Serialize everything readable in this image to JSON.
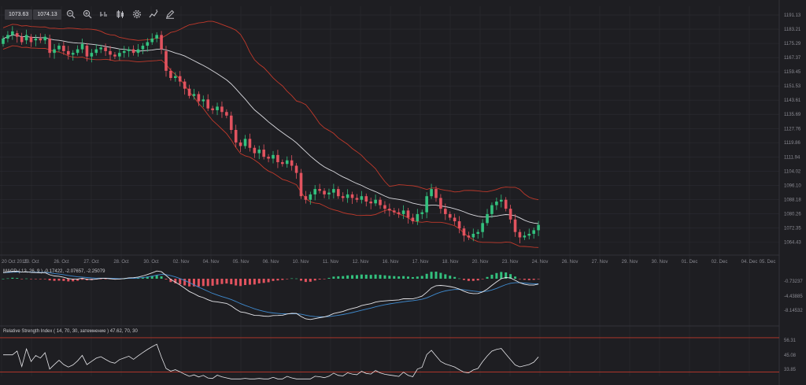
{
  "toolbar": {
    "bid": "1073.63",
    "ask": "1074.13",
    "buttons": [
      "zoom-out-icon",
      "zoom-in-icon",
      "chart-type-icon",
      "candles-icon",
      "settings-icon",
      "indicators-icon",
      "draw-icon"
    ]
  },
  "colors": {
    "bull": "#33c17e",
    "bear": "#e2535f",
    "band": "#c0392b",
    "sma": "#d9d9de",
    "macd_line": "#e6e6ea",
    "signal": "#3f8bd0",
    "rsi": "#e6e6ea",
    "grid": "#2c2c32"
  },
  "chart_data": [
    {
      "type": "candlestick",
      "title": "",
      "ylim": [
        1058,
        1196
      ],
      "y_ticks": [
        "1191.13",
        "1183.21",
        "1175.29",
        "1167.37",
        "1159.45",
        "1151.53",
        "1143.61",
        "1135.69",
        "1127.76",
        "1119.86",
        "1111.94",
        "1104.02",
        "1096.10",
        "1088.18",
        "1080.26",
        "1072.35",
        "1064.43"
      ],
      "x_ticks": [
        "20 Oct 2015",
        "23. Oct",
        "26. Oct",
        "27. Oct",
        "28. Oct",
        "30. Oct",
        "02. Nov",
        "04. Nov",
        "05. Nov",
        "06. Nov",
        "10. Nov",
        "11. Nov",
        "12. Nov",
        "16. Nov",
        "17. Nov",
        "18. Nov",
        "20. Nov",
        "23. Nov",
        "24. Nov",
        "26. Nov",
        "27. Nov",
        "29. Nov",
        "30. Nov",
        "01. Dec",
        "02. Dec",
        "04. Dec",
        "05. Dec"
      ],
      "close": [
        1178,
        1180,
        1182,
        1179,
        1176,
        1180,
        1176,
        1178,
        1177,
        1179,
        1170,
        1172,
        1174,
        1171,
        1169,
        1170,
        1172,
        1175,
        1168,
        1170,
        1172,
        1173,
        1171,
        1169,
        1168,
        1170,
        1171,
        1172,
        1170,
        1172,
        1174,
        1176,
        1178,
        1180,
        1172,
        1160,
        1156,
        1157,
        1154,
        1150,
        1146,
        1147,
        1143,
        1144,
        1139,
        1138,
        1140,
        1137,
        1135,
        1127,
        1120,
        1118,
        1122,
        1117,
        1114,
        1116,
        1112,
        1111,
        1113,
        1109,
        1108,
        1110,
        1107,
        1103,
        1090,
        1088,
        1091,
        1094,
        1093,
        1091,
        1092,
        1094,
        1090,
        1089,
        1091,
        1089,
        1088,
        1090,
        1087,
        1086,
        1088,
        1085,
        1083,
        1082,
        1081,
        1080,
        1082,
        1078,
        1076,
        1080,
        1081,
        1090,
        1094,
        1089,
        1083,
        1080,
        1078,
        1076,
        1072,
        1068,
        1067,
        1069,
        1070,
        1075,
        1080,
        1085,
        1087,
        1088,
        1083,
        1077,
        1070,
        1067,
        1068,
        1069,
        1071,
        1074
      ],
      "open_delta": [
        -3,
        -2,
        -2,
        2,
        3,
        -3,
        3,
        -1,
        1,
        -2,
        8,
        -2,
        -2,
        3,
        2,
        -1,
        -2,
        -3,
        6,
        -2,
        -2,
        -1,
        2,
        2,
        1,
        -2,
        -1,
        -1,
        2,
        -2,
        -2,
        -2,
        -2,
        -2,
        8,
        11,
        4,
        -1,
        3,
        4,
        4,
        -1,
        4,
        -1,
        5,
        1,
        -2,
        3,
        2,
        8,
        7,
        2,
        -4,
        5,
        3,
        -2,
        4,
        1,
        -2,
        4,
        1,
        -2,
        3,
        4,
        13,
        2,
        -3,
        -3,
        1,
        2,
        -1,
        -2,
        4,
        1,
        -2,
        2,
        1,
        -2,
        3,
        1,
        -2,
        3,
        2,
        1,
        1,
        1,
        -2,
        4,
        2,
        -4,
        -1,
        -9,
        -4,
        5,
        6,
        3,
        2,
        2,
        4,
        4,
        1,
        -2,
        -1,
        -5,
        -5,
        -5,
        -2,
        -1,
        5,
        6,
        7,
        3,
        -1,
        -1,
        -2,
        -3
      ],
      "sma_period": 20,
      "bollinger_dev": 2
    },
    {
      "type": "macd",
      "label": "MACD ( 12, 26, 9 ) -0.17422, -2.07657, -2.25079",
      "params": [
        12,
        26,
        9
      ],
      "values": [
        -0.17422,
        -2.07657,
        -2.25079
      ],
      "y_ticks": [
        "-0.73237",
        "-4.43885",
        "-8.14532"
      ]
    },
    {
      "type": "rsi",
      "label": "Relative Strength Index ( 14, 70, 30, затемнение ) 47.62, 70, 30",
      "period": 14,
      "levels": [
        70,
        30
      ],
      "value": 47.62,
      "y_ticks": [
        "56.31",
        "45.08",
        "33.85"
      ]
    }
  ]
}
